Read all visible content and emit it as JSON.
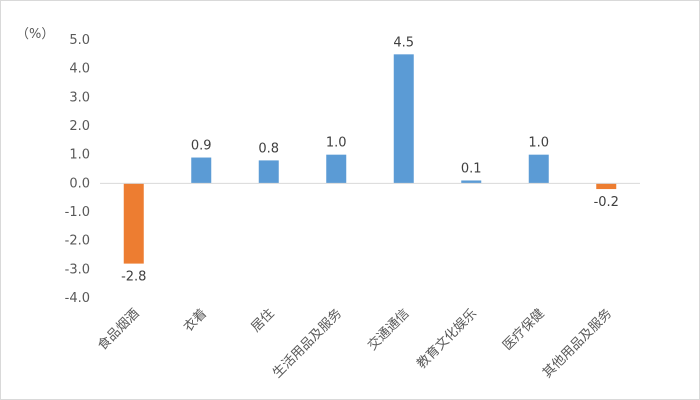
{
  "chart_data": {
    "type": "bar",
    "unit_label": "（%）",
    "categories": [
      "食品烟酒",
      "衣着",
      "居住",
      "生活用品及服务",
      "交通通信",
      "教育文化娱乐",
      "医疗保健",
      "其他用品及服务"
    ],
    "values": [
      -2.8,
      0.9,
      0.8,
      1.0,
      4.5,
      0.1,
      1.0,
      -0.2
    ],
    "value_labels": [
      "-2.8",
      "0.9",
      "0.8",
      "1.0",
      "4.5",
      "0.1",
      "1.0",
      "-0.2"
    ],
    "y_ticks": [
      "5.0",
      "4.0",
      "3.0",
      "2.0",
      "1.0",
      "0.0",
      "-1.0",
      "-2.0",
      "-3.0",
      "-4.0"
    ],
    "ylim": [
      -4.0,
      5.0
    ],
    "grid": false,
    "colors": {
      "positive": "#5B9BD5",
      "negative": "#ED7D31",
      "axis": "#d9d9d9"
    }
  }
}
